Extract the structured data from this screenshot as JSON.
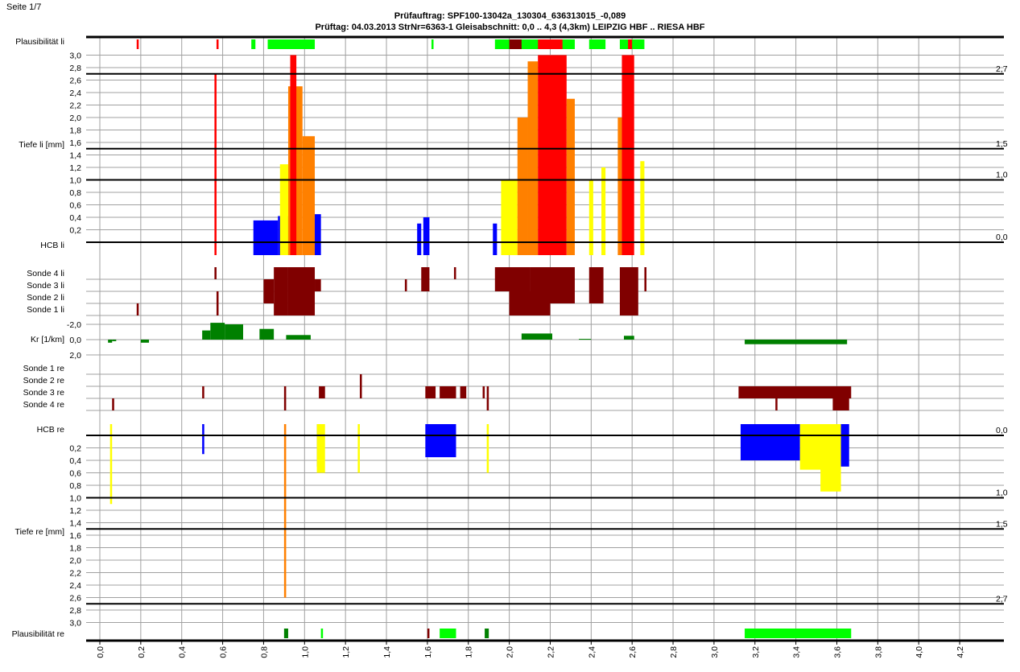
{
  "page": {
    "label": "Seite 1/7"
  },
  "header": {
    "title": "Prüfauftrag: SPF100-13042a_130304_636313015_-0,089",
    "subtitle": "Prüftag: 04.03.2013 StrNr=6363-1  Gleisabschnitt: 0,0 .. 4,3 (4,3km) LEIPZIG HBF .. RIESA HBF"
  },
  "colors": {
    "blue": "#0000ff",
    "yellow": "#ffff00",
    "orange": "#ff8000",
    "red": "#ff0000",
    "darkred": "#800000",
    "green": "#008000",
    "lime": "#00ff00",
    "grid": "#a0a0a0"
  },
  "chart_data": {
    "type": "bar",
    "x_axis": {
      "range": [
        0.0,
        4.3
      ],
      "ticks": [
        "0,0",
        "0,2",
        "0,4",
        "0,6",
        "0,8",
        "1,0",
        "1,2",
        "1,4",
        "1,6",
        "1,8",
        "2,0",
        "2,2",
        "2,4",
        "2,6",
        "2,8",
        "3,0",
        "3,2",
        "3,4",
        "3,6",
        "3,8",
        "4,0",
        "4,2"
      ]
    },
    "row_labels": {
      "plaus_li": "Plausibilität li",
      "tiefe_li": "Tiefe li [mm]",
      "hcb_li": "HCB li",
      "sonde4_li": "Sonde 4 li",
      "sonde3_li": "Sonde 3 li",
      "sonde2_li": "Sonde 2 li",
      "sonde1_li": "Sonde 1 li",
      "kr": "Kr [1/km]",
      "sonde1_re": "Sonde 1 re",
      "sonde2_re": "Sonde 2 re",
      "sonde3_re": "Sonde 3 re",
      "sonde4_re": "Sonde 4 re",
      "hcb_re": "HCB re",
      "tiefe_re": "Tiefe re [mm]",
      "plaus_re": "Plausibilität re"
    },
    "depth_ticks": [
      "0,2",
      "0,4",
      "0,6",
      "0,8",
      "1,0",
      "1,2",
      "1,4",
      "1,6",
      "1,8",
      "2,0",
      "2,2",
      "2,4",
      "2,6",
      "2,8",
      "3,0"
    ],
    "depth_tick_values": [
      0.2,
      0.4,
      0.6,
      0.8,
      1.0,
      1.2,
      1.4,
      1.6,
      1.8,
      2.0,
      2.2,
      2.4,
      2.6,
      2.8,
      3.0
    ],
    "kr_ticks": [
      "-2,0",
      "0,0",
      "2,0"
    ],
    "thresholds": [
      {
        "value": 0.0,
        "label": "0,0"
      },
      {
        "value": 1.0,
        "label": "1,0"
      },
      {
        "value": 1.5,
        "label": "1,5"
      },
      {
        "value": 2.7,
        "label": "2,7"
      }
    ],
    "depth_li": [
      {
        "x": [
          0.87,
          0.93
        ],
        "depth": 0.42,
        "color": "blue"
      },
      {
        "x": [
          0.75,
          0.87
        ],
        "depth": 0.35,
        "color": "blue"
      },
      {
        "x": [
          0.56,
          0.57
        ],
        "depth": 2.7,
        "color": "red"
      },
      {
        "x": [
          0.88,
          0.92
        ],
        "depth": 1.25,
        "color": "yellow"
      },
      {
        "x": [
          0.92,
          0.99
        ],
        "depth": 2.5,
        "color": "orange"
      },
      {
        "x": [
          0.93,
          0.96
        ],
        "depth": 3.0,
        "color": "red"
      },
      {
        "x": [
          0.99,
          1.05
        ],
        "depth": 1.7,
        "color": "orange"
      },
      {
        "x": [
          1.05,
          1.08
        ],
        "depth": 0.45,
        "color": "blue"
      },
      {
        "x": [
          1.55,
          1.57
        ],
        "depth": 0.3,
        "color": "blue"
      },
      {
        "x": [
          1.58,
          1.61
        ],
        "depth": 0.4,
        "color": "blue"
      },
      {
        "x": [
          1.92,
          1.94
        ],
        "depth": 0.3,
        "color": "blue"
      },
      {
        "x": [
          1.96,
          2.04
        ],
        "depth": 1.0,
        "color": "yellow"
      },
      {
        "x": [
          2.04,
          2.09
        ],
        "depth": 2.0,
        "color": "orange"
      },
      {
        "x": [
          2.09,
          2.14
        ],
        "depth": 2.9,
        "color": "orange"
      },
      {
        "x": [
          2.14,
          2.28
        ],
        "depth": 3.0,
        "color": "red"
      },
      {
        "x": [
          2.28,
          2.32
        ],
        "depth": 2.3,
        "color": "orange"
      },
      {
        "x": [
          2.39,
          2.41
        ],
        "depth": 1.0,
        "color": "yellow"
      },
      {
        "x": [
          2.45,
          2.47
        ],
        "depth": 1.2,
        "color": "yellow"
      },
      {
        "x": [
          2.53,
          2.55
        ],
        "depth": 2.0,
        "color": "orange"
      },
      {
        "x": [
          2.55,
          2.61
        ],
        "depth": 3.0,
        "color": "red"
      },
      {
        "x": [
          2.64,
          2.66
        ],
        "depth": 1.3,
        "color": "yellow"
      }
    ],
    "depth_re": [
      {
        "x": [
          0.05,
          0.06
        ],
        "depth": 1.1,
        "color": "yellow"
      },
      {
        "x": [
          0.5,
          0.51
        ],
        "depth": 0.3,
        "color": "blue"
      },
      {
        "x": [
          0.9,
          0.91
        ],
        "depth": 2.6,
        "color": "orange"
      },
      {
        "x": [
          1.06,
          1.08
        ],
        "depth": 0.5,
        "color": "blue"
      },
      {
        "x": [
          1.06,
          1.1
        ],
        "depth": 0.6,
        "color": "yellow"
      },
      {
        "x": [
          1.26,
          1.27
        ],
        "depth": 0.6,
        "color": "yellow"
      },
      {
        "x": [
          1.59,
          1.74
        ],
        "depth": 0.35,
        "color": "blue"
      },
      {
        "x": [
          1.89,
          1.9
        ],
        "depth": 0.6,
        "color": "yellow"
      },
      {
        "x": [
          3.13,
          3.42
        ],
        "depth": 0.4,
        "color": "blue"
      },
      {
        "x": [
          3.42,
          3.6
        ],
        "depth": 0.55,
        "color": "yellow"
      },
      {
        "x": [
          3.52,
          3.62
        ],
        "depth": 0.9,
        "color": "yellow"
      },
      {
        "x": [
          3.62,
          3.66
        ],
        "depth": 0.5,
        "color": "blue"
      }
    ],
    "sonde_li": [
      {
        "x": [
          0.56,
          0.57
        ],
        "rows": [
          0
        ]
      },
      {
        "x": [
          0.8,
          0.85
        ],
        "rows": [
          1,
          2
        ]
      },
      {
        "x": [
          0.85,
          0.92
        ],
        "rows": [
          0,
          1,
          2,
          3
        ]
      },
      {
        "x": [
          0.92,
          1.05
        ],
        "rows": [
          0,
          1,
          2,
          3
        ]
      },
      {
        "x": [
          1.05,
          1.08
        ],
        "rows": [
          1
        ]
      },
      {
        "x": [
          0.18,
          0.19
        ],
        "rows": [
          3
        ]
      },
      {
        "x": [
          0.57,
          0.58
        ],
        "rows": [
          2,
          3
        ]
      },
      {
        "x": [
          1.49,
          1.5
        ],
        "rows": [
          1
        ]
      },
      {
        "x": [
          1.57,
          1.61
        ],
        "rows": [
          0,
          1
        ]
      },
      {
        "x": [
          1.73,
          1.74
        ],
        "rows": [
          0
        ]
      },
      {
        "x": [
          1.93,
          2.1
        ],
        "rows": [
          0,
          1
        ]
      },
      {
        "x": [
          2.0,
          2.2
        ],
        "rows": [
          2,
          3
        ]
      },
      {
        "x": [
          2.1,
          2.32
        ],
        "rows": [
          0,
          1,
          2
        ]
      },
      {
        "x": [
          2.39,
          2.46
        ],
        "rows": [
          0,
          1,
          2
        ]
      },
      {
        "x": [
          2.54,
          2.63
        ],
        "rows": [
          0,
          1,
          2,
          3
        ]
      },
      {
        "x": [
          2.66,
          2.67
        ],
        "rows": [
          0,
          1
        ]
      }
    ],
    "sonde_re": [
      {
        "x": [
          1.27,
          1.28
        ],
        "rows": [
          1,
          2
        ]
      },
      {
        "x": [
          0.5,
          0.51
        ],
        "rows": [
          2
        ]
      },
      {
        "x": [
          0.06,
          0.07
        ],
        "rows": [
          3
        ]
      },
      {
        "x": [
          0.9,
          0.91
        ],
        "rows": [
          2,
          3
        ]
      },
      {
        "x": [
          1.07,
          1.1
        ],
        "rows": [
          2
        ]
      },
      {
        "x": [
          1.59,
          1.64
        ],
        "rows": [
          2
        ]
      },
      {
        "x": [
          1.66,
          1.74
        ],
        "rows": [
          2
        ]
      },
      {
        "x": [
          1.76,
          1.79
        ],
        "rows": [
          2
        ]
      },
      {
        "x": [
          1.87,
          1.88
        ],
        "rows": [
          2
        ]
      },
      {
        "x": [
          1.89,
          1.9
        ],
        "rows": [
          2,
          3
        ]
      },
      {
        "x": [
          3.12,
          3.67
        ],
        "rows": [
          2
        ]
      },
      {
        "x": [
          3.3,
          3.31
        ],
        "rows": [
          3
        ]
      },
      {
        "x": [
          3.58,
          3.66
        ],
        "rows": [
          3
        ]
      }
    ],
    "kr": [
      {
        "x": [
          0.04,
          0.06
        ],
        "value": 0.4
      },
      {
        "x": [
          0.06,
          0.08
        ],
        "value": 0.2
      },
      {
        "x": [
          0.2,
          0.24
        ],
        "value": 0.4
      },
      {
        "x": [
          0.5,
          0.54
        ],
        "value": -1.2
      },
      {
        "x": [
          0.54,
          0.61
        ],
        "value": -2.2
      },
      {
        "x": [
          0.61,
          0.7
        ],
        "value": -2.0
      },
      {
        "x": [
          0.78,
          0.85
        ],
        "value": -1.4
      },
      {
        "x": [
          0.91,
          1.03
        ],
        "value": -0.6
      },
      {
        "x": [
          2.06,
          2.21
        ],
        "value": -0.8
      },
      {
        "x": [
          2.34,
          2.4
        ],
        "value": -0.1
      },
      {
        "x": [
          2.56,
          2.61
        ],
        "value": -0.5
      },
      {
        "x": [
          3.15,
          3.65
        ],
        "value": 0.6
      }
    ],
    "plaus_li": [
      {
        "x": [
          0.18,
          0.19
        ],
        "color": "red"
      },
      {
        "x": [
          0.57,
          0.58
        ],
        "color": "red"
      },
      {
        "x": [
          0.74,
          0.76
        ],
        "color": "lime"
      },
      {
        "x": [
          0.82,
          1.05
        ],
        "color": "lime"
      },
      {
        "x": [
          1.62,
          1.63
        ],
        "color": "lime"
      },
      {
        "x": [
          1.93,
          2.32
        ],
        "color": "lime"
      },
      {
        "x": [
          2.0,
          2.06
        ],
        "color": "darkred"
      },
      {
        "x": [
          2.14,
          2.26
        ],
        "color": "red"
      },
      {
        "x": [
          2.39,
          2.47
        ],
        "color": "lime"
      },
      {
        "x": [
          2.54,
          2.66
        ],
        "color": "lime"
      },
      {
        "x": [
          2.58,
          2.6
        ],
        "color": "red"
      }
    ],
    "plaus_re": [
      {
        "x": [
          0.9,
          0.92
        ],
        "color": "green"
      },
      {
        "x": [
          1.08,
          1.09
        ],
        "color": "lime"
      },
      {
        "x": [
          1.6,
          1.61
        ],
        "color": "darkred"
      },
      {
        "x": [
          1.66,
          1.74
        ],
        "color": "lime"
      },
      {
        "x": [
          1.88,
          1.9
        ],
        "color": "green"
      },
      {
        "x": [
          3.15,
          3.67
        ],
        "color": "lime"
      }
    ]
  }
}
